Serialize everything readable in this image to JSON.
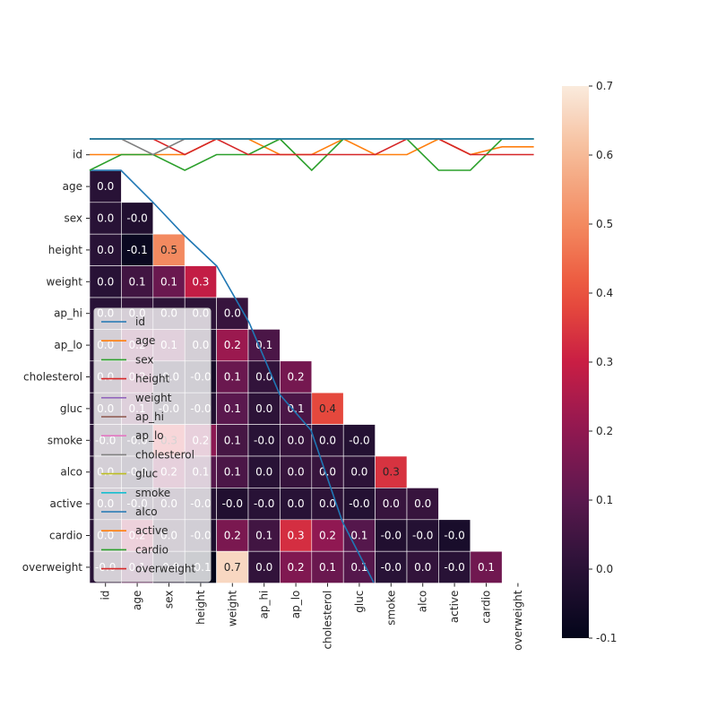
{
  "chart_data": {
    "type": "heatmap",
    "title": "",
    "xlabel": "",
    "ylabel": "",
    "categories": [
      "id",
      "age",
      "sex",
      "height",
      "weight",
      "ap_hi",
      "ap_lo",
      "cholesterol",
      "gluc",
      "smoke",
      "alco",
      "active",
      "cardio",
      "overweight"
    ],
    "mask": "upper-triangle",
    "values": [
      [
        null,
        null,
        null,
        null,
        null,
        null,
        null,
        null,
        null,
        null,
        null,
        null,
        null,
        null
      ],
      [
        0.0,
        null,
        null,
        null,
        null,
        null,
        null,
        null,
        null,
        null,
        null,
        null,
        null,
        null
      ],
      [
        0.0,
        -0.02,
        null,
        null,
        null,
        null,
        null,
        null,
        null,
        null,
        null,
        null,
        null,
        null
      ],
      [
        0.0,
        -0.08,
        0.5,
        null,
        null,
        null,
        null,
        null,
        null,
        null,
        null,
        null,
        null,
        null
      ],
      [
        0.0,
        0.05,
        0.13,
        0.29,
        null,
        null,
        null,
        null,
        null,
        null,
        null,
        null,
        null,
        null
      ],
      [
        0.0,
        0.02,
        0.01,
        0.01,
        0.03,
        null,
        null,
        null,
        null,
        null,
        null,
        null,
        null,
        null
      ],
      [
        0.0,
        0.15,
        0.13,
        0.0,
        0.22,
        0.07,
        null,
        null,
        null,
        null,
        null,
        null,
        null,
        null
      ],
      [
        0.0,
        0.15,
        -0.03,
        -0.05,
        0.13,
        0.02,
        0.15,
        null,
        null,
        null,
        null,
        null,
        null,
        null
      ],
      [
        0.0,
        0.1,
        -0.02,
        -0.02,
        0.1,
        0.01,
        0.07,
        0.38,
        null,
        null,
        null,
        null,
        null,
        null
      ],
      [
        -0.0,
        -0.05,
        0.34,
        0.19,
        0.06,
        -0.0,
        0.03,
        0.01,
        -0.01,
        null,
        null,
        null,
        null,
        null
      ],
      [
        0.0,
        -0.03,
        0.17,
        0.09,
        0.07,
        0.0,
        0.03,
        0.03,
        0.01,
        0.34,
        null,
        null,
        null,
        null
      ],
      [
        0.0,
        -0.01,
        0.01,
        -0.01,
        -0.02,
        -0.0,
        0.0,
        0.01,
        -0.01,
        0.03,
        0.03,
        null,
        null,
        null
      ],
      [
        0.0,
        0.24,
        0.0,
        -0.03,
        0.16,
        0.05,
        0.33,
        0.2,
        0.09,
        -0.02,
        -0.01,
        -0.04,
        null,
        null
      ],
      [
        -0.0,
        0.09,
        -0.05,
        -0.15,
        0.66,
        0.02,
        0.17,
        0.13,
        0.09,
        -0.0,
        0.02,
        -0.0,
        0.14,
        null
      ]
    ],
    "colorbar": {
      "min": -0.1,
      "max": 0.7,
      "ticks": [
        -0.1,
        0.0,
        0.1,
        0.2,
        0.3,
        0.4,
        0.5,
        0.6,
        0.7
      ],
      "colormap": "rocket"
    },
    "legend": {
      "position": "lower-left",
      "entries": [
        {
          "name": "id",
          "color": "#1f77b4"
        },
        {
          "name": "age",
          "color": "#ff7f0e"
        },
        {
          "name": "sex",
          "color": "#2ca02c"
        },
        {
          "name": "height",
          "color": "#d62728"
        },
        {
          "name": "weight",
          "color": "#9467bd"
        },
        {
          "name": "ap_hi",
          "color": "#8c564b"
        },
        {
          "name": "ap_lo",
          "color": "#e377c2"
        },
        {
          "name": "cholesterol",
          "color": "#7f7f7f"
        },
        {
          "name": "gluc",
          "color": "#bcbd22"
        },
        {
          "name": "smoke",
          "color": "#17becf"
        },
        {
          "name": "alco",
          "color": "#1f77b4"
        },
        {
          "name": "active",
          "color": "#ff7f0e"
        },
        {
          "name": "cardio",
          "color": "#2ca02c"
        },
        {
          "name": "overweight",
          "color": "#d62728"
        }
      ]
    },
    "overlay_lines": [
      {
        "name": "id",
        "color": "#1f77b4",
        "values": [
          1,
          0.5,
          2.5,
          3.5,
          4.5,
          6.5,
          8.5,
          10.5,
          12.5,
          14.5,
          16.5,
          18.5,
          20.5,
          22.5
        ]
      },
      {
        "name": "age",
        "color": "#ff7f0e",
        "values": [
          1,
          1,
          1,
          1,
          0,
          0,
          1,
          1,
          0,
          1,
          1,
          0,
          1,
          0.5
        ]
      },
      {
        "name": "sex",
        "color": "#2ca02c",
        "values": [
          2,
          1,
          1,
          2,
          1,
          1,
          0,
          2,
          0,
          0,
          0,
          2,
          2,
          0
        ]
      },
      {
        "name": "height",
        "color": "#d62728",
        "values": [
          0,
          0,
          0,
          1,
          0,
          1,
          1,
          1,
          1,
          1,
          0,
          0,
          1,
          1
        ]
      },
      {
        "name": "cholesterol",
        "color": "#7f7f7f",
        "values": [
          0,
          0,
          1,
          0,
          0,
          0,
          0,
          0,
          0,
          0,
          0,
          0,
          0,
          0
        ]
      },
      {
        "name": "cardio",
        "color": "#2ca02c",
        "values": [
          0,
          0,
          0,
          0,
          0,
          0,
          0,
          0,
          0,
          0,
          0,
          0,
          0,
          0
        ]
      },
      {
        "name": "alco",
        "color": "#1f77b4",
        "values": [
          0,
          0,
          0,
          0,
          0,
          0,
          0,
          0,
          0,
          0,
          0,
          0,
          0,
          0
        ]
      }
    ]
  }
}
